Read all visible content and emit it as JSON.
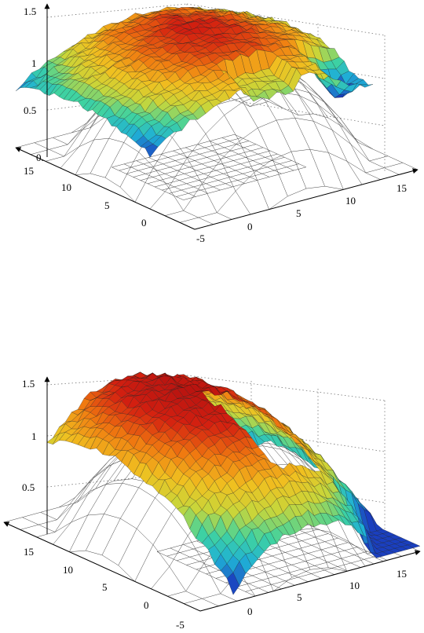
{
  "chart_data": [
    {
      "type": "surface",
      "view": "top",
      "z_ticks": [
        "0.",
        "0.5",
        "1",
        "1.5"
      ],
      "y_ticks": [
        "15",
        "10",
        "5",
        "0"
      ],
      "x_ticks": [
        "-5",
        "0",
        "5",
        "10",
        "15"
      ],
      "x_range": [
        -5,
        15
      ],
      "y_range": [
        -5,
        15
      ],
      "z_range": [
        0,
        1.5
      ],
      "grid": true,
      "colormap": [
        "#1a3fbf",
        "#1fb0d6",
        "#3fd3a0",
        "#c8d63a",
        "#f0c020",
        "#f07a10",
        "#d42010",
        "#b01010"
      ]
    },
    {
      "type": "surface",
      "view": "bottom",
      "z_ticks": [
        "0.5",
        "1",
        "1.5"
      ],
      "y_ticks": [
        "15",
        "10",
        "5",
        "0",
        "-5"
      ],
      "x_ticks": [
        "0",
        "5",
        "10",
        "15"
      ],
      "x_range": [
        -5,
        15
      ],
      "y_range": [
        -5,
        15
      ],
      "z_range": [
        0,
        1.5
      ],
      "grid": true,
      "colormap": [
        "#1a3fbf",
        "#1fb0d6",
        "#3fd3a0",
        "#c8d63a",
        "#f0c020",
        "#f07a10",
        "#d42010",
        "#b01010"
      ]
    }
  ]
}
